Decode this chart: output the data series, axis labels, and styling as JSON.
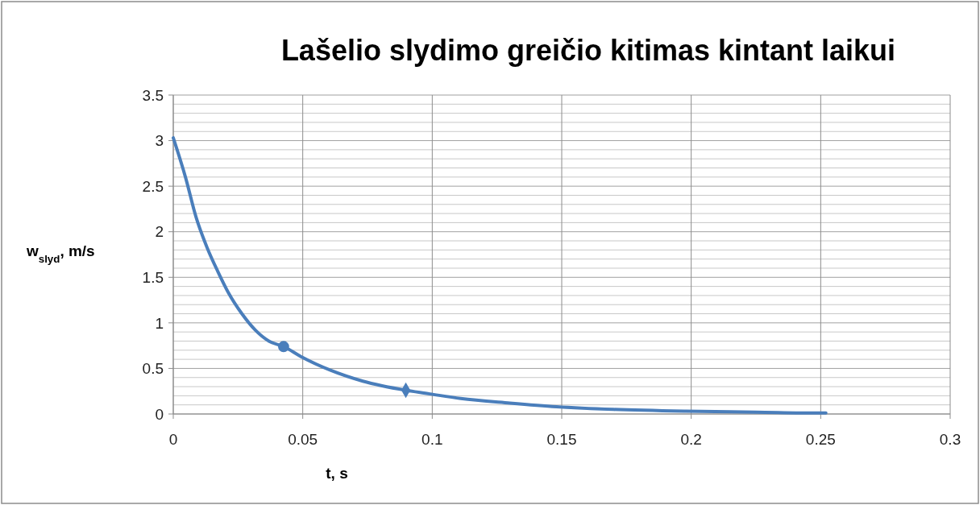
{
  "chart_data": {
    "type": "line",
    "title": "Lašelio slydimo greičio kitimas kintant laikui",
    "xlabel": "t, s",
    "ylabel": "w$_{slyd}$, m/s",
    "xlim": [
      0,
      0.3
    ],
    "xticks": [
      0,
      0.05,
      0.1,
      0.15,
      0.2,
      0.25,
      0.3
    ],
    "ylim": [
      0,
      3.5
    ],
    "yticks": [
      0,
      {
        "value": 0.1,
        "label": null
      },
      {
        "value": 0.2,
        "label": null
      },
      {
        "value": 0.3,
        "label": null
      },
      {
        "value": 0.4,
        "label": null
      },
      0.5,
      {
        "value": 0.6,
        "label": null
      },
      {
        "value": 0.7,
        "label": null
      },
      {
        "value": 0.8,
        "label": null
      },
      {
        "value": 0.9,
        "label": null
      },
      1,
      {
        "value": 1.1,
        "label": null
      },
      {
        "value": 1.2,
        "label": null
      },
      {
        "value": 1.3,
        "label": null
      },
      {
        "value": 1.4,
        "label": null
      },
      1.5,
      {
        "value": 1.6,
        "label": null
      },
      {
        "value": 1.7,
        "label": null
      },
      {
        "value": 1.8,
        "label": null
      },
      {
        "value": 1.9,
        "label": null
      },
      2,
      {
        "value": 2.1,
        "label": null
      },
      {
        "value": 2.2,
        "label": null
      },
      {
        "value": 2.3,
        "label": null
      },
      {
        "value": 2.4,
        "label": null
      },
      2.5,
      {
        "value": 2.6,
        "label": null
      },
      {
        "value": 2.7,
        "label": null
      },
      {
        "value": 2.8,
        "label": null
      },
      {
        "value": 2.9,
        "label": null
      },
      3,
      {
        "value": 3.1,
        "label": null
      },
      {
        "value": 3.2,
        "label": null
      },
      {
        "value": 3.3,
        "label": null
      },
      {
        "value": 3.4,
        "label": null
      },
      3.5
    ],
    "grid": true,
    "line_style": "solid",
    "series": [
      {
        "marker": "none",
        "color": "#4a7ebb",
        "x": [
          0,
          0.0047,
          0.0088,
          0.013,
          0.0171,
          0.0213,
          0.0265,
          0.0317,
          0.0369,
          0.0426,
          0.0493,
          0.0607,
          0.0732,
          0.0898,
          0.0991,
          0.111,
          0.13,
          0.148,
          0.17,
          0.198,
          0.225,
          0.249,
          0.252
        ],
        "values": [
          3.03,
          2.6,
          2.16,
          1.83,
          1.57,
          1.33,
          1.1,
          0.92,
          0.8,
          0.74,
          0.63,
          0.48,
          0.36,
          0.26,
          0.22,
          0.17,
          0.12,
          0.08,
          0.05,
          0.03,
          0.02,
          0.01,
          0.01
        ]
      },
      {
        "type": "scatter",
        "marker": "circle",
        "color": "#4a7ebb",
        "x": [
          0.0426
        ],
        "values": [
          0.74
        ]
      },
      {
        "type": "scatter",
        "marker": "diamond",
        "color": "#4a7ebb",
        "x": [
          0.0898
        ],
        "values": [
          0.26
        ]
      }
    ]
  }
}
